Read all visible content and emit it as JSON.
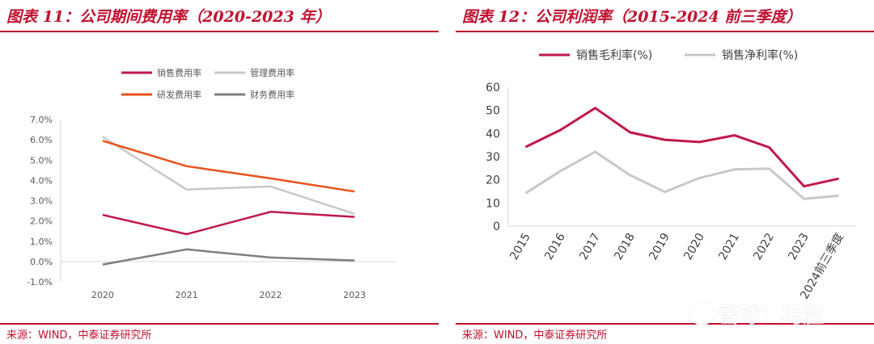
{
  "left_panel": {
    "title": "图表 11：公司期间费用率（2020-2023 年）",
    "source": "来源：WIND，中泰证券研究所"
  },
  "right_panel": {
    "title": "图表 12：公司利润率（2015-2024 前三季度）",
    "source": "来源：WIND，中泰证券研究所"
  },
  "watermark": "雪球：冯胜",
  "chart_data": [
    {
      "type": "line",
      "title": "图表 11：公司期间费用率（2020-2023 年）",
      "categories": [
        "2020",
        "2021",
        "2022",
        "2023"
      ],
      "ylim": [
        -1.0,
        7.0
      ],
      "yticks": [
        -1.0,
        0.0,
        1.0,
        2.0,
        3.0,
        4.0,
        5.0,
        6.0,
        7.0
      ],
      "ytick_labels": [
        "-1.0%",
        "0.0%",
        "1.0%",
        "2.0%",
        "3.0%",
        "4.0%",
        "5.0%",
        "6.0%",
        "7.0%"
      ],
      "grid": false,
      "legend": "top",
      "series": [
        {
          "name": "销售费用率",
          "color": "#c0184a",
          "values": [
            2.3,
            1.35,
            2.45,
            2.2
          ]
        },
        {
          "name": "管理费用率",
          "color": "#c8c8c8",
          "values": [
            6.15,
            3.55,
            3.7,
            2.35
          ]
        },
        {
          "name": "研发费用率",
          "color": "#e8521a",
          "values": [
            5.95,
            4.7,
            4.1,
            3.45
          ]
        },
        {
          "name": "财务费用率",
          "color": "#7f7f7f",
          "values": [
            -0.15,
            0.6,
            0.2,
            0.05
          ]
        }
      ]
    },
    {
      "type": "line",
      "title": "图表 12：公司利润率（2015-2024 前三季度）",
      "categories": [
        "2015",
        "2016",
        "2017",
        "2018",
        "2019",
        "2020",
        "2021",
        "2022",
        "2023",
        "2024前三季度"
      ],
      "ylim": [
        0,
        60
      ],
      "yticks": [
        0,
        10,
        20,
        30,
        40,
        50,
        60
      ],
      "grid": false,
      "legend": "top",
      "series": [
        {
          "name": "销售毛利率(%)",
          "color": "#c0184a",
          "values": [
            34.2,
            41.5,
            51.0,
            40.5,
            37.3,
            36.3,
            39.2,
            34.0,
            17.2,
            20.5
          ]
        },
        {
          "name": "销售净利率(%)",
          "color": "#c8c8c8",
          "values": [
            14.2,
            23.8,
            32.1,
            22.0,
            14.8,
            20.8,
            24.5,
            24.8,
            11.8,
            13.1
          ]
        }
      ]
    }
  ]
}
